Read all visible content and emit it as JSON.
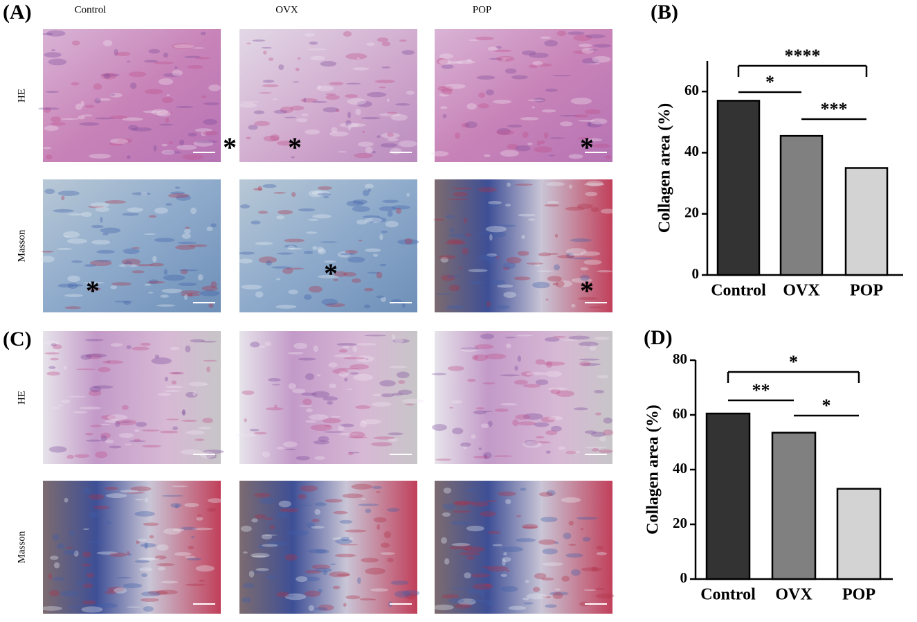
{
  "micrographs": [
    {
      "label": "(A)",
      "columns": [
        "Control",
        "OVX",
        "POP"
      ],
      "rows": [
        "HE",
        "Masson"
      ],
      "marker": "*"
    },
    {
      "label": "(C)",
      "rows": [
        "HE",
        "Masson"
      ]
    }
  ],
  "chart_data": [
    {
      "type": "bar",
      "label": "(B)",
      "ylabel": "Collagen  area (%)",
      "categories": [
        "Control",
        "OVX",
        "POP"
      ],
      "values": [
        57,
        45.5,
        35
      ],
      "colors": [
        "#333333",
        "#808080",
        "#d3d3d3"
      ],
      "ylim": [
        0,
        70
      ],
      "yticks": [
        0,
        20,
        40,
        60
      ],
      "annotations": [
        "****",
        "*",
        "***"
      ]
    },
    {
      "type": "bar",
      "label": "(D)",
      "ylabel": "Collagen  area (%)",
      "categories": [
        "Control",
        "OVX",
        "POP"
      ],
      "values": [
        60.5,
        53.5,
        33
      ],
      "colors": [
        "#333333",
        "#808080",
        "#d3d3d3"
      ],
      "ylim": [
        0,
        80
      ],
      "yticks": [
        0,
        20,
        40,
        60,
        80
      ],
      "annotations": [
        "*",
        "**",
        "*"
      ]
    }
  ]
}
